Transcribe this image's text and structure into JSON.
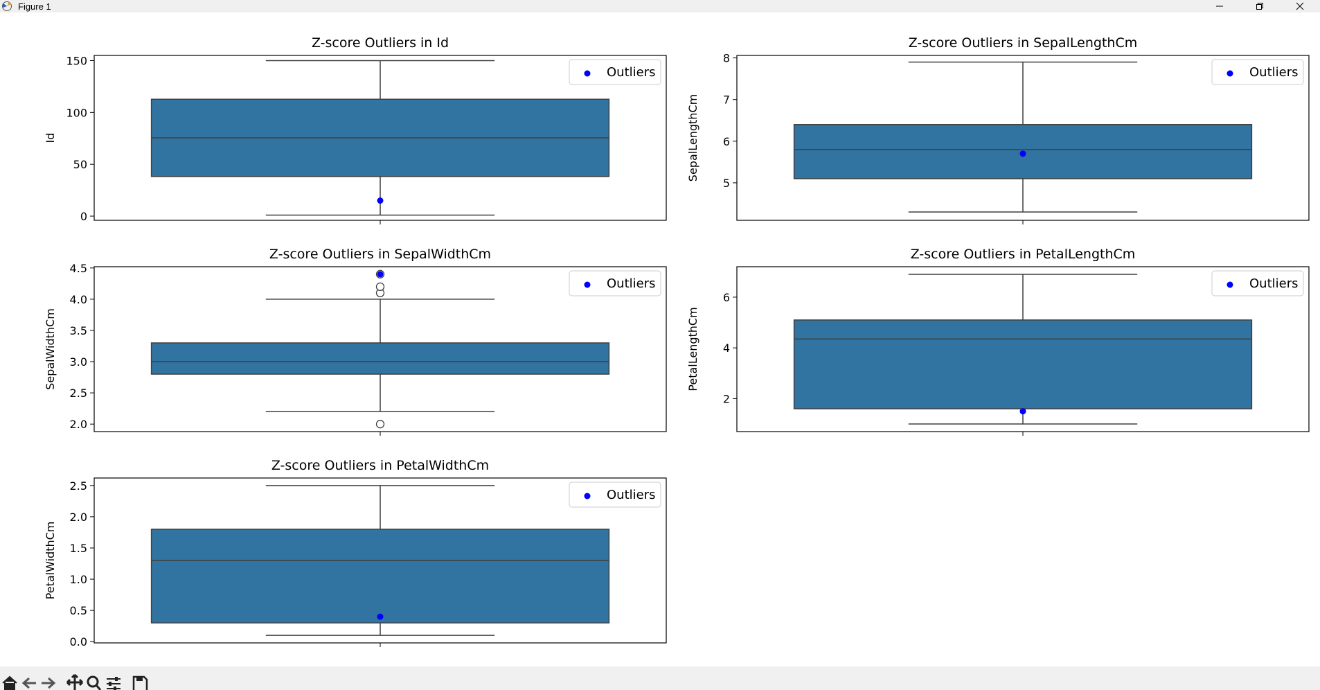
{
  "window": {
    "title": "Figure 1",
    "icon": "matplotlib-icon",
    "controls": [
      "minimize-icon",
      "restore-icon",
      "close-icon"
    ]
  },
  "toolbar": {
    "buttons": [
      "home-icon",
      "back-arrow-icon",
      "forward-arrow-icon",
      "pan-icon",
      "zoom-icon",
      "configure-subplots-icon",
      "save-icon"
    ]
  },
  "colors": {
    "box": "#3274a1",
    "outlier_marker": "#0000ff",
    "edge": "#3f3f3f"
  },
  "chart_data": [
    {
      "type": "box",
      "title": "Z-score Outliers in Id",
      "ylabel": "Id",
      "ylim": [
        -4,
        155
      ],
      "yticks": [
        0,
        50,
        100,
        150
      ],
      "tick_labels": [
        "0",
        "50",
        "100",
        "150"
      ],
      "box": {
        "whisker_low": 1,
        "q1": 38.25,
        "median": 75.5,
        "q3": 112.75,
        "whisker_high": 150
      },
      "fliers": [],
      "outliers": [
        15
      ],
      "legend": {
        "label": "Outliers",
        "loc": "upper right"
      }
    },
    {
      "type": "box",
      "title": "Z-score Outliers in SepalLengthCm",
      "ylabel": "SepalLengthCm",
      "ylim": [
        4.1,
        8.06
      ],
      "yticks": [
        5,
        6,
        7,
        8
      ],
      "tick_labels": [
        "5",
        "6",
        "7",
        "8"
      ],
      "box": {
        "whisker_low": 4.3,
        "q1": 5.1,
        "median": 5.8,
        "q3": 6.4,
        "whisker_high": 7.9
      },
      "fliers": [],
      "outliers": [
        5.7
      ],
      "legend": {
        "label": "Outliers",
        "loc": "upper right"
      }
    },
    {
      "type": "box",
      "title": "Z-score Outliers in SepalWidthCm",
      "ylabel": "SepalWidthCm",
      "ylim": [
        1.88,
        4.52
      ],
      "yticks": [
        2.0,
        2.5,
        3.0,
        3.5,
        4.0,
        4.5
      ],
      "tick_labels": [
        "2.0",
        "2.5",
        "3.0",
        "3.5",
        "4.0",
        "4.5"
      ],
      "box": {
        "whisker_low": 2.2,
        "q1": 2.8,
        "median": 3.0,
        "q3": 3.3,
        "whisker_high": 4.0
      },
      "fliers": [
        2.0,
        4.1,
        4.2,
        4.4
      ],
      "outliers": [
        4.4
      ],
      "legend": {
        "label": "Outliers",
        "loc": "upper right"
      }
    },
    {
      "type": "box",
      "title": "Z-score Outliers in PetalLengthCm",
      "ylabel": "PetalLengthCm",
      "ylim": [
        0.7,
        7.2
      ],
      "yticks": [
        2,
        4,
        6
      ],
      "tick_labels": [
        "2",
        "4",
        "6"
      ],
      "box": {
        "whisker_low": 1.0,
        "q1": 1.6,
        "median": 4.35,
        "q3": 5.1,
        "whisker_high": 6.9
      },
      "fliers": [],
      "outliers": [
        1.5
      ],
      "legend": {
        "label": "Outliers",
        "loc": "upper right"
      }
    },
    {
      "type": "box",
      "title": "Z-score Outliers in PetalWidthCm",
      "ylabel": "PetalWidthCm",
      "ylim": [
        -0.02,
        2.62
      ],
      "yticks": [
        0.0,
        0.5,
        1.0,
        1.5,
        2.0,
        2.5
      ],
      "tick_labels": [
        "0.0",
        "0.5",
        "1.0",
        "1.5",
        "2.0",
        "2.5"
      ],
      "box": {
        "whisker_low": 0.1,
        "q1": 0.3,
        "median": 1.3,
        "q3": 1.8,
        "whisker_high": 2.5
      },
      "fliers": [],
      "outliers": [
        0.4
      ],
      "legend": {
        "label": "Outliers",
        "loc": "upper right"
      }
    }
  ]
}
